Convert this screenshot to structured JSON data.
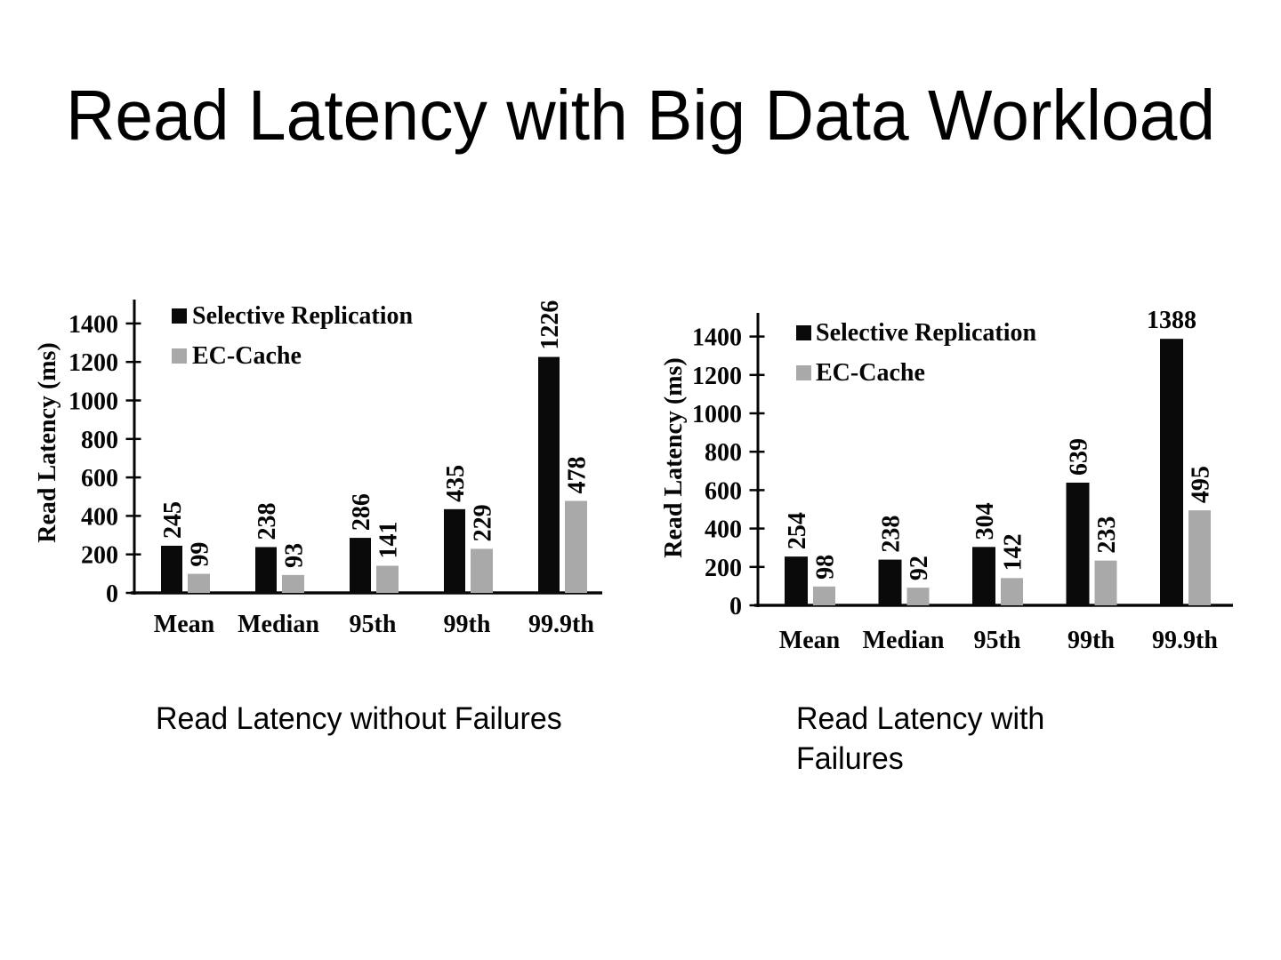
{
  "slide": {
    "title": "Read Latency with Big Data Workload",
    "captions": {
      "left": "Read Latency without Failures",
      "right_line1": "Read Latency with",
      "right_line2": "Failures"
    }
  },
  "colors": {
    "selective_replication": "#0a0a0a",
    "ec_cache": "#a9a9a9",
    "text": "#000000",
    "background": "#ffffff"
  },
  "chart_data": [
    {
      "type": "bar",
      "title": "Read Latency without Failures",
      "categories": [
        "Mean",
        "Median",
        "95th",
        "99th",
        "99.9th"
      ],
      "series": [
        {
          "name": "Selective Replication",
          "color": "#0a0a0a",
          "values": [
            245,
            238,
            286,
            435,
            1226
          ]
        },
        {
          "name": "EC-Cache",
          "color": "#a9a9a9",
          "values": [
            99,
            93,
            141,
            229,
            478
          ]
        }
      ],
      "ylabel": "Read Latency (ms)",
      "yticks": [
        0,
        200,
        400,
        600,
        800,
        1000,
        1200,
        1400
      ],
      "ylim": [
        0,
        1500
      ],
      "grid": false,
      "legend_position": "top-left",
      "value_labels": true
    },
    {
      "type": "bar",
      "title": "Read Latency with Failures",
      "categories": [
        "Mean",
        "Median",
        "95th",
        "99th",
        "99.9th"
      ],
      "series": [
        {
          "name": "Selective Replication",
          "color": "#0a0a0a",
          "values": [
            254,
            238,
            304,
            639,
            1388
          ]
        },
        {
          "name": "EC-Cache",
          "color": "#a9a9a9",
          "values": [
            98,
            92,
            142,
            233,
            495
          ]
        }
      ],
      "ylabel": "Read Latency (ms)",
      "yticks": [
        0,
        200,
        400,
        600,
        800,
        1000,
        1200,
        1400
      ],
      "ylim": [
        0,
        1500
      ],
      "grid": false,
      "legend_position": "top-left",
      "value_labels": true
    }
  ]
}
